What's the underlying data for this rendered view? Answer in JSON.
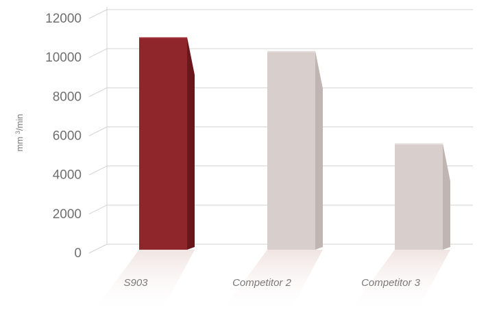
{
  "chart_data": {
    "type": "bar",
    "categories": [
      "S903",
      "Competitor 2",
      "Competitor 3"
    ],
    "values": [
      10800,
      10100,
      5400
    ],
    "title": "",
    "xlabel": "",
    "ylabel": "mm ³/min",
    "ylabel_parts": {
      "unit": "mm",
      "sup": "3",
      "rate": "/min"
    },
    "ylim": [
      0,
      12000
    ],
    "yticks": [
      0,
      2000,
      4000,
      6000,
      8000,
      10000,
      12000
    ],
    "grid": true,
    "legend": "none",
    "colors": {
      "highlight": "#8e262c",
      "highlight_side": "#6a171c",
      "highlight_top": "#a33036",
      "other": "#d8cfcd",
      "other_side": "#c0b5b3",
      "other_top": "#e3dbd9",
      "grid": "#d3d3d3",
      "shadow": "#f1e6e3"
    }
  }
}
